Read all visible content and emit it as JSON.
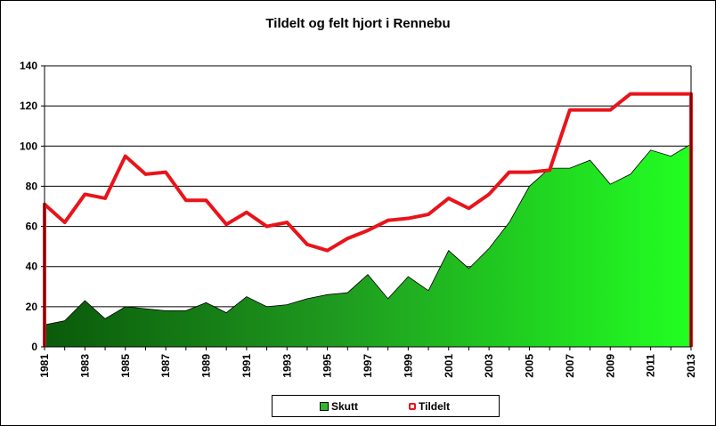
{
  "chart_data": {
    "type": "area",
    "title": "Tildelt og felt hjort i Rennebu",
    "xlabel": "",
    "ylabel": "",
    "ylim": [
      0,
      140
    ],
    "yticks": [
      0,
      20,
      40,
      60,
      80,
      100,
      120,
      140
    ],
    "x": [
      1981,
      1982,
      1983,
      1984,
      1985,
      1986,
      1987,
      1988,
      1989,
      1990,
      1991,
      1992,
      1993,
      1994,
      1995,
      1996,
      1997,
      1998,
      1999,
      2000,
      2001,
      2002,
      2003,
      2004,
      2005,
      2006,
      2007,
      2008,
      2009,
      2010,
      2011,
      2012,
      2013
    ],
    "xtick_labels": [
      "1981",
      "1983",
      "1985",
      "1987",
      "1989",
      "1991",
      "1993",
      "1995",
      "1997",
      "1999",
      "2001",
      "2003",
      "2005",
      "2007",
      "2009",
      "2011",
      "2013"
    ],
    "grid": true,
    "legend_position": "bottom",
    "series": [
      {
        "name": "Skutt",
        "type": "area",
        "color": "#2db82d",
        "values": [
          11,
          13,
          23,
          14,
          20,
          19,
          18,
          18,
          22,
          17,
          25,
          20,
          21,
          24,
          26,
          27,
          36,
          24,
          35,
          28,
          48,
          39,
          49,
          62,
          80,
          89,
          89,
          93,
          81,
          86,
          98,
          95,
          101
        ]
      },
      {
        "name": "Tildelt",
        "type": "line",
        "color": "#e8141a",
        "values": [
          71,
          62,
          76,
          74,
          95,
          86,
          87,
          73,
          73,
          61,
          67,
          60,
          62,
          51,
          48,
          54,
          58,
          63,
          64,
          66,
          74,
          69,
          76,
          87,
          87,
          88,
          118,
          118,
          118,
          126,
          126,
          126,
          126
        ]
      }
    ]
  }
}
